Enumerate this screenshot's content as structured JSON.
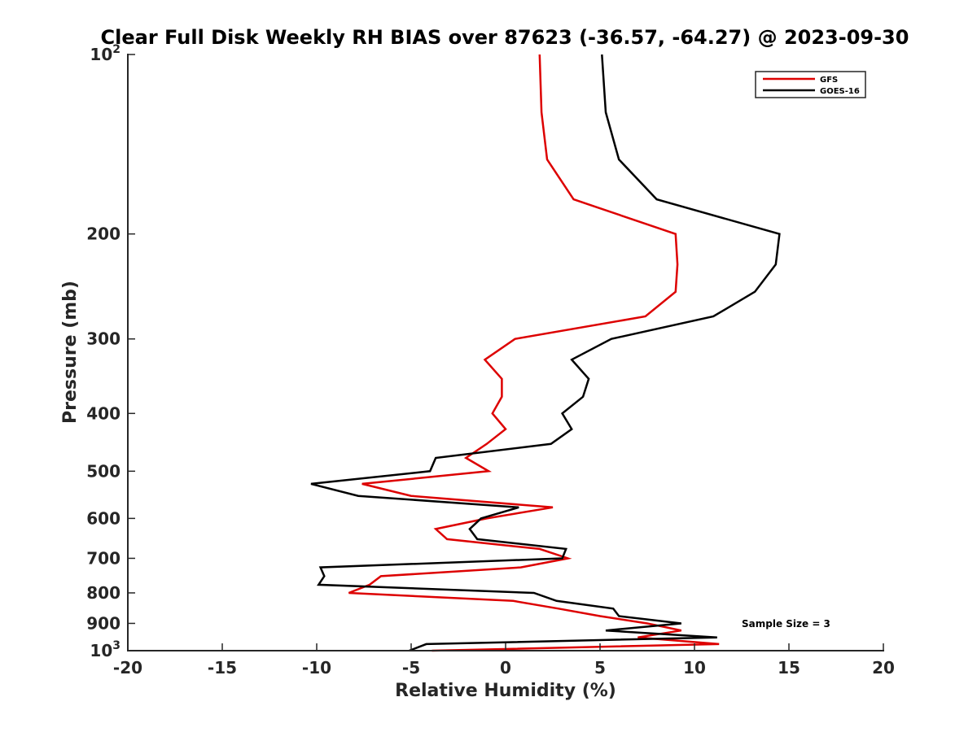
{
  "chart_data": {
    "type": "line",
    "title": "Clear Full Disk Weekly RH BIAS over 87623 (-36.57, -64.27) @ 2023-09-30",
    "xlabel": "Relative Humidity (%)",
    "ylabel": "Pressure (mb)",
    "xlim": [
      -20,
      20
    ],
    "ylim": [
      100,
      1000
    ],
    "y_scale": "log",
    "y_reversed": true,
    "xticks": [
      -20,
      -15,
      -10,
      -5,
      0,
      5,
      10,
      15,
      20
    ],
    "xtick_labels": [
      "-20",
      "-15",
      "-10",
      "-5",
      "0",
      "5",
      "10",
      "15",
      "20"
    ],
    "yticks": [
      100,
      200,
      300,
      400,
      500,
      600,
      700,
      800,
      900,
      1000
    ],
    "ytick_labels": [
      {
        "base": "10",
        "exp": "2"
      },
      {
        "base": "200",
        "exp": ""
      },
      {
        "base": "300",
        "exp": ""
      },
      {
        "base": "400",
        "exp": ""
      },
      {
        "base": "500",
        "exp": ""
      },
      {
        "base": "600",
        "exp": ""
      },
      {
        "base": "700",
        "exp": ""
      },
      {
        "base": "800",
        "exp": ""
      },
      {
        "base": "900",
        "exp": ""
      },
      {
        "base": "10",
        "exp": "3"
      }
    ],
    "grid": false,
    "legend_position": "top-right",
    "annotation": "Sample Size = 3",
    "series": [
      {
        "name": "GFS",
        "color": "#dd0000",
        "points": [
          [
            1.8,
            100
          ],
          [
            1.9,
            125
          ],
          [
            2.2,
            150
          ],
          [
            3.6,
            175
          ],
          [
            9.0,
            200
          ],
          [
            9.1,
            225
          ],
          [
            9.0,
            250
          ],
          [
            7.4,
            275
          ],
          [
            0.5,
            300
          ],
          [
            -1.1,
            325
          ],
          [
            -0.2,
            350
          ],
          [
            -0.2,
            375
          ],
          [
            -0.7,
            400
          ],
          [
            0.0,
            425
          ],
          [
            -1.0,
            450
          ],
          [
            -2.1,
            475
          ],
          [
            -0.9,
            500
          ],
          [
            -7.6,
            525
          ],
          [
            -5.0,
            550
          ],
          [
            2.5,
            575
          ],
          [
            -1.0,
            600
          ],
          [
            -3.7,
            625
          ],
          [
            -3.1,
            650
          ],
          [
            1.8,
            675
          ],
          [
            3.3,
            700
          ],
          [
            0.8,
            725
          ],
          [
            -6.6,
            750
          ],
          [
            -7.2,
            775
          ],
          [
            -8.3,
            800
          ],
          [
            0.4,
            825
          ],
          [
            2.8,
            850
          ],
          [
            5.0,
            875
          ],
          [
            7.5,
            900
          ],
          [
            9.3,
            925
          ],
          [
            7.0,
            950
          ],
          [
            11.3,
            975
          ],
          [
            -3.9,
            1000
          ]
        ]
      },
      {
        "name": "GOES-16",
        "color": "#000000",
        "points": [
          [
            5.1,
            100
          ],
          [
            5.3,
            125
          ],
          [
            6.0,
            150
          ],
          [
            8.0,
            175
          ],
          [
            14.5,
            200
          ],
          [
            14.3,
            225
          ],
          [
            13.2,
            250
          ],
          [
            11.0,
            275
          ],
          [
            5.6,
            300
          ],
          [
            3.5,
            325
          ],
          [
            4.4,
            350
          ],
          [
            4.1,
            375
          ],
          [
            3.0,
            400
          ],
          [
            3.5,
            425
          ],
          [
            2.4,
            450
          ],
          [
            -3.7,
            475
          ],
          [
            -4.0,
            500
          ],
          [
            -10.3,
            525
          ],
          [
            -7.8,
            550
          ],
          [
            0.7,
            575
          ],
          [
            -1.3,
            600
          ],
          [
            -1.9,
            625
          ],
          [
            -1.5,
            650
          ],
          [
            3.2,
            675
          ],
          [
            3.0,
            700
          ],
          [
            -9.8,
            725
          ],
          [
            -9.6,
            750
          ],
          [
            -9.9,
            775
          ],
          [
            1.5,
            800
          ],
          [
            2.7,
            825
          ],
          [
            5.7,
            850
          ],
          [
            6.0,
            875
          ],
          [
            9.3,
            900
          ],
          [
            5.3,
            925
          ],
          [
            11.2,
            950
          ],
          [
            -4.2,
            975
          ],
          [
            -5.1,
            1000
          ]
        ]
      }
    ]
  }
}
